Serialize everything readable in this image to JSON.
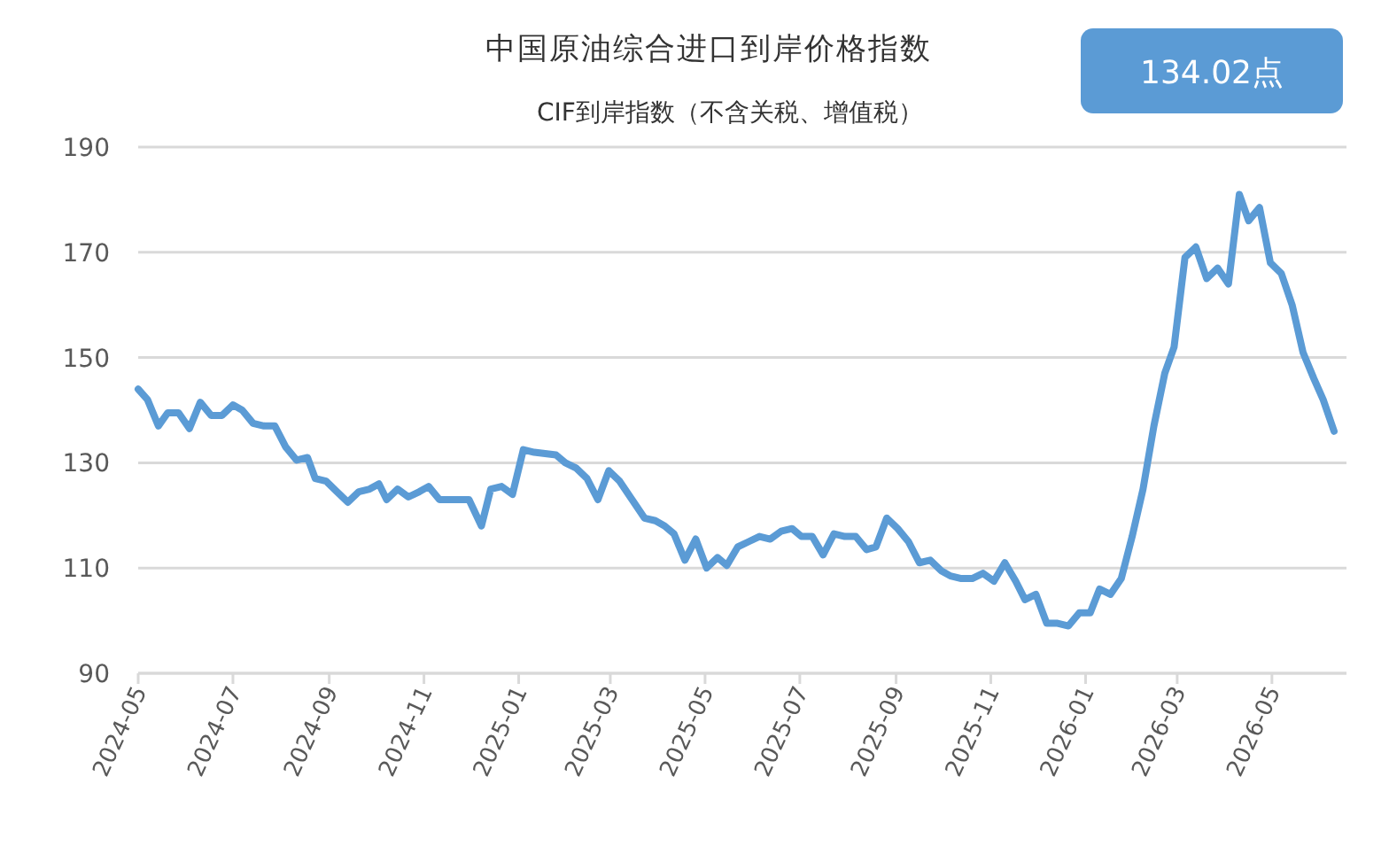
{
  "chart_data": {
    "type": "line",
    "title": "中国原油综合进口到岸价格指数",
    "subtitle": "CIF到岸指数（不含关税、增值税）",
    "annotations": [
      "134.02点"
    ],
    "x": [
      "2024-05-01",
      "2024-05-07",
      "2024-05-14",
      "2024-05-20",
      "2024-05-27",
      "2024-06-03",
      "2024-06-10",
      "2024-06-17",
      "2024-06-24",
      "2024-07-01",
      "2024-07-07",
      "2024-07-14",
      "2024-07-21",
      "2024-07-28",
      "2024-08-04",
      "2024-08-11",
      "2024-08-18",
      "2024-08-23",
      "2024-08-30",
      "2024-09-06",
      "2024-09-13",
      "2024-09-20",
      "2024-09-27",
      "2024-10-03",
      "2024-10-08",
      "2024-10-15",
      "2024-10-22",
      "2024-10-29",
      "2024-11-04",
      "2024-11-11",
      "2024-11-20",
      "2024-11-30",
      "2024-12-08",
      "2024-12-14",
      "2024-12-21",
      "2024-12-28",
      "2025-01-04",
      "2025-01-11",
      "2025-01-25",
      "2025-01-31",
      "2025-02-07",
      "2025-02-14",
      "2025-02-21",
      "2025-02-28",
      "2025-03-07",
      "2025-03-15",
      "2025-03-23",
      "2025-03-30",
      "2025-04-05",
      "2025-04-11",
      "2025-04-18",
      "2025-04-25",
      "2025-05-02",
      "2025-05-09",
      "2025-05-15",
      "2025-05-22",
      "2025-05-29",
      "2025-06-05",
      "2025-06-12",
      "2025-06-19",
      "2025-06-26",
      "2025-07-02",
      "2025-07-09",
      "2025-07-16",
      "2025-07-23",
      "2025-07-30",
      "2025-08-06",
      "2025-08-13",
      "2025-08-19",
      "2025-08-26",
      "2025-09-02",
      "2025-09-09",
      "2025-09-16",
      "2025-09-23",
      "2025-09-30",
      "2025-10-06",
      "2025-10-13",
      "2025-10-20",
      "2025-10-27",
      "2025-11-03",
      "2025-11-10",
      "2025-11-17",
      "2025-11-23",
      "2025-11-30",
      "2025-12-07",
      "2025-12-14",
      "2025-12-21",
      "2025-12-28",
      "2026-01-04",
      "2026-01-10",
      "2026-01-17",
      "2026-01-24",
      "2026-01-31",
      "2026-02-07",
      "2026-02-14",
      "2026-02-21",
      "2026-02-27",
      "2026-03-06",
      "2026-03-13",
      "2026-03-20",
      "2026-03-27",
      "2026-04-03",
      "2026-04-10",
      "2026-04-16",
      "2026-04-23",
      "2026-04-30",
      "2026-05-07",
      "2026-05-14",
      "2026-05-21",
      "2026-05-28",
      "2026-06-03",
      "2026-06-10"
    ],
    "series": [
      {
        "color": "#5b9bd5",
        "values": [
          144,
          142,
          137,
          139.5,
          139.5,
          136.5,
          141.5,
          139,
          139,
          141,
          140,
          137.5,
          137,
          137,
          133,
          130.5,
          131,
          127,
          126.5,
          124.5,
          122.5,
          124.5,
          125,
          126,
          123,
          125,
          123.5,
          124.5,
          125.5,
          123,
          123,
          123,
          118,
          125,
          125.5,
          124,
          132.5,
          132,
          131.5,
          130,
          129,
          127,
          123,
          128.5,
          126.5,
          123,
          119.5,
          119,
          118,
          116.5,
          111.5,
          115.5,
          110,
          112,
          110.5,
          114,
          115,
          116,
          115.5,
          117,
          117.5,
          116,
          116,
          112.5,
          116.5,
          116,
          116,
          113.5,
          114,
          119.5,
          117.5,
          115,
          111,
          111.5,
          109.5,
          108.5,
          108,
          108,
          109,
          107.5,
          111,
          107.5,
          104,
          105,
          99.5,
          99.5,
          99,
          101.5,
          101.5,
          106,
          105,
          108,
          116,
          125,
          137,
          147,
          152,
          169,
          171,
          165,
          167,
          164,
          181,
          176,
          178.5,
          168,
          166,
          160,
          151,
          146,
          142,
          136
        ]
      }
    ],
    "xlim": [
      "2024-05-01",
      "2026-06-18"
    ],
    "xticks": [
      "2024-05",
      "2024-07",
      "2024-09",
      "2024-11",
      "2025-01",
      "2025-03",
      "2025-05",
      "2025-07",
      "2025-09",
      "2025-11",
      "2026-01",
      "2026-03",
      "2026-05"
    ],
    "ylim": [
      90,
      190
    ],
    "yticks": [
      90,
      110,
      130,
      150,
      170,
      190
    ],
    "grid": "y",
    "marker": "none",
    "line_style": "solid"
  }
}
